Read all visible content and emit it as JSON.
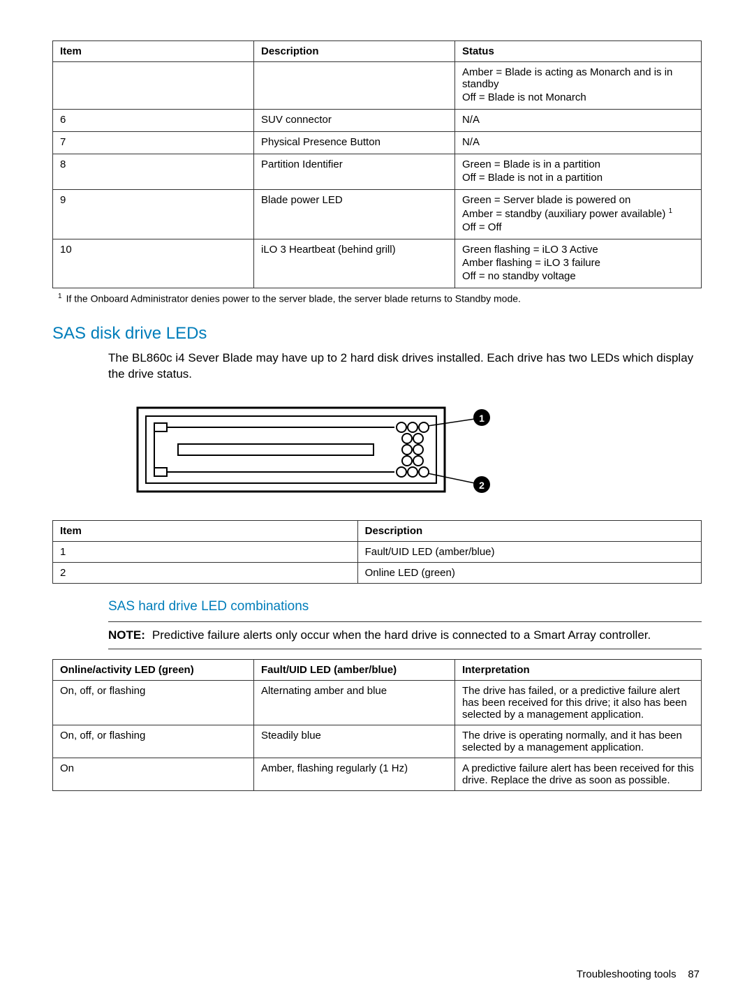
{
  "table1": {
    "columns": [
      "Item",
      "Description",
      "Status"
    ],
    "rows": [
      {
        "item": "",
        "desc": "",
        "status": [
          "Amber = Blade is acting as Monarch and is in standby",
          "Off = Blade is not Monarch"
        ]
      },
      {
        "item": "6",
        "desc": "SUV connector",
        "status": [
          "N/A"
        ]
      },
      {
        "item": "7",
        "desc": "Physical Presence Button",
        "status": [
          "N/A"
        ]
      },
      {
        "item": "8",
        "desc": "Partition Identifier",
        "status": [
          "Green = Blade is in a partition",
          "Off = Blade is not in a partition"
        ]
      },
      {
        "item": "9",
        "desc": "Blade power LED",
        "status": [
          "Green = Server blade is powered on",
          "Amber = standby (auxiliary power available) ",
          "Off = Off"
        ],
        "sup_on": 1
      },
      {
        "item": "10",
        "desc": "iLO 3 Heartbeat (behind grill)",
        "status": [
          "Green flashing = iLO 3 Active",
          "Amber flashing = iLO 3 failure",
          "Off = no standby voltage"
        ]
      }
    ]
  },
  "footnote1": "If the Onboard Administrator denies power to the server blade, the server blade returns to Standby mode.",
  "section_sas_title": "SAS disk drive LEDs",
  "sas_body": "The BL860c i4 Sever Blade may have up to 2 hard disk drives installed. Each drive has two LEDs which display the drive status.",
  "table2": {
    "columns": [
      "Item",
      "Description"
    ],
    "rows": [
      {
        "item": "1",
        "desc": "Fault/UID LED (amber/blue)"
      },
      {
        "item": "2",
        "desc": "Online LED (green)"
      }
    ]
  },
  "subsection_title": "SAS hard drive LED combinations",
  "note_label": "NOTE:",
  "note_text": "Predictive failure alerts only occur when the hard drive is connected to a Smart Array controller.",
  "table3": {
    "columns": [
      "Online/activity LED (green)",
      "Fault/UID LED (amber/blue)",
      "Interpretation"
    ],
    "rows": [
      {
        "c1": "On, off, or flashing",
        "c2": "Alternating amber and blue",
        "c3": "The drive has failed, or a predictive failure alert has been received for this drive; it also has been selected by a management application."
      },
      {
        "c1": "On, off, or flashing",
        "c2": "Steadily blue",
        "c3": "The drive is operating normally, and it has been selected by a management application."
      },
      {
        "c1": "On",
        "c2": "Amber, flashing regularly (1 Hz)",
        "c3": "A predictive failure alert has been received for this drive. Replace the drive as soon as possible."
      }
    ]
  },
  "footer_text": "Troubleshooting tools",
  "footer_page": "87",
  "colors": {
    "heading": "#007dba",
    "border": "#333333",
    "text": "#000000",
    "background": "#ffffff"
  }
}
